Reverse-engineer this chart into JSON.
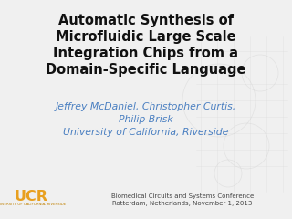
{
  "title_line1": "Automatic Synthesis of",
  "title_line2": "Microfluidic Large Scale",
  "title_line3": "Integration Chips from a",
  "title_line4": "Domain-Specific Language",
  "authors_line1": "Jeffrey McDaniel, Christopher Curtis,",
  "authors_line2": "Philip Brisk",
  "authors_line3": "University of California, Riverside",
  "conf_line1": "Biomedical Circuits and Systems Conference",
  "conf_line2": "Rotterdam, Netherlands, November 1, 2013",
  "title_color": "#111111",
  "authors_color": "#4a7fc1",
  "conf_color": "#444444",
  "bg_color": "#f0f0f0",
  "ucr_color": "#e8a020",
  "ucr_sub_color": "#c08000",
  "title_fontsize": 10.5,
  "authors_fontsize": 7.8,
  "conf_fontsize": 5.0,
  "ucr_fontsize": 11.5,
  "ucr_sub_fontsize": 2.8
}
